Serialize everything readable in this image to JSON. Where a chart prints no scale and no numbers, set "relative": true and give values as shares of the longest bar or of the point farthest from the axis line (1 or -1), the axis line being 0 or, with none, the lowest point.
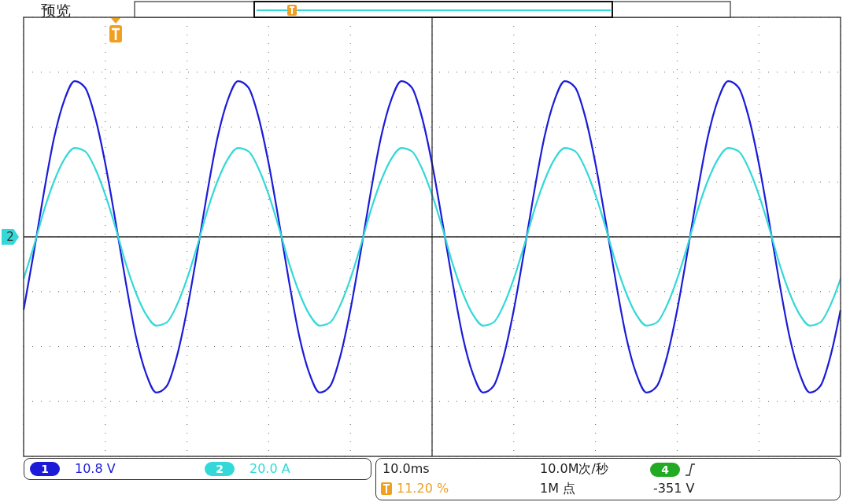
{
  "chart_data": {
    "type": "line",
    "title": "预览",
    "relative": true,
    "grid": true,
    "legend": "bottom",
    "marker": "none",
    "categories": [
      null,
      null,
      null,
      null,
      null,
      null,
      null,
      null,
      null,
      null,
      null,
      null,
      null,
      null,
      null,
      null,
      null,
      null,
      null,
      null,
      null,
      null,
      null,
      null,
      null,
      null,
      null,
      null,
      null,
      null,
      null,
      null,
      null,
      null,
      null,
      null,
      null,
      null,
      null,
      null,
      null,
      null,
      null,
      null,
      null,
      null,
      null,
      null,
      null,
      null,
      null,
      null,
      null,
      null,
      null,
      null,
      null,
      null,
      null,
      null,
      null,
      null,
      null,
      null,
      null,
      null,
      null,
      null,
      null,
      null,
      null,
      null,
      null,
      null,
      null,
      null,
      null,
      null,
      null,
      null,
      null
    ],
    "series": [
      {
        "name": "1",
        "color": "#1c1cd8",
        "values": [
          -0.47,
          -0.1,
          0.29,
          0.64,
          0.88,
          1,
          0.96,
          0.77,
          0.47,
          0.1,
          -0.29,
          -0.64,
          -0.88,
          -1,
          -0.96,
          -0.77,
          -0.47,
          -0.1,
          0.29,
          0.64,
          0.88,
          1,
          0.96,
          0.77,
          0.47,
          0.1,
          -0.29,
          -0.64,
          -0.88,
          -1,
          -0.96,
          -0.77,
          -0.47,
          -0.1,
          0.29,
          0.64,
          0.88,
          1,
          0.96,
          0.77,
          0.47,
          0.1,
          -0.29,
          -0.64,
          -0.88,
          -1,
          -0.96,
          -0.77,
          -0.47,
          -0.1,
          0.29,
          0.64,
          0.88,
          1,
          0.96,
          0.77,
          0.47,
          0.1,
          -0.29,
          -0.64,
          -0.88,
          -1,
          -0.96,
          -0.77,
          -0.47,
          -0.1,
          0.29,
          0.64,
          0.88,
          1,
          0.96,
          0.77,
          0.47,
          0.1,
          -0.29,
          -0.64,
          -0.88,
          -1,
          -0.96,
          -0.77,
          -0.47
        ]
      },
      {
        "name": "2",
        "color": "#35d8d8",
        "values": [
          -0.27,
          -0.06,
          0.17,
          0.36,
          0.5,
          0.57,
          0.55,
          0.44,
          0.27,
          0.06,
          -0.17,
          -0.36,
          -0.5,
          -0.57,
          -0.55,
          -0.44,
          -0.27,
          -0.06,
          0.17,
          0.36,
          0.5,
          0.57,
          0.55,
          0.44,
          0.27,
          0.06,
          -0.17,
          -0.36,
          -0.5,
          -0.57,
          -0.55,
          -0.44,
          -0.27,
          -0.06,
          0.17,
          0.36,
          0.5,
          0.57,
          0.55,
          0.44,
          0.27,
          0.06,
          -0.17,
          -0.36,
          -0.5,
          -0.57,
          -0.55,
          -0.44,
          -0.27,
          -0.06,
          0.17,
          0.36,
          0.5,
          0.57,
          0.55,
          0.44,
          0.27,
          0.06,
          -0.17,
          -0.36,
          -0.5,
          -0.57,
          -0.55,
          -0.44,
          -0.27,
          -0.06,
          0.17,
          0.36,
          0.5,
          0.57,
          0.55,
          0.44,
          0.27,
          0.06,
          -0.17,
          -0.36,
          -0.5,
          -0.57,
          -0.55,
          -0.44,
          -0.27
        ]
      }
    ],
    "annotations": [
      "10.8 V",
      "20.0 A",
      "10.0ms",
      "11.20 %",
      "10.0M次/秒",
      "1M 点",
      "4",
      "-351 V"
    ]
  }
}
